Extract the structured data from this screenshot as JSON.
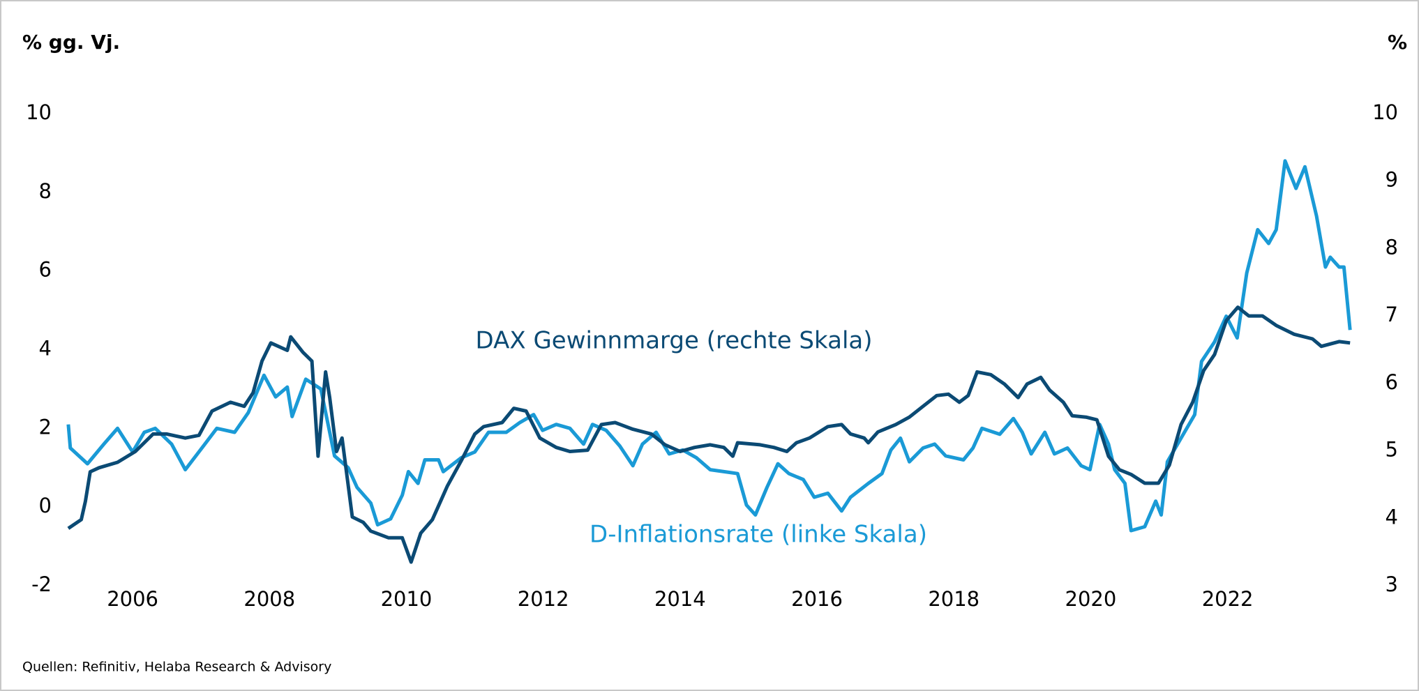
{
  "chart_data": {
    "type": "line",
    "ylabel": "% gg. Vj.",
    "y2label": "%",
    "source": "Quellen: Refinitiv, Helaba Research & Advisory",
    "annotations": [
      "DAX Gewinnmarge (rechte Skala)",
      "D-Inflationsrate (linke Skala)"
    ],
    "xlim": [
      2005,
      2023.9
    ],
    "xticks": [
      2006,
      2008,
      2010,
      2012,
      2014,
      2016,
      2018,
      2020,
      2022
    ],
    "ylim": [
      -2,
      10
    ],
    "yticks": [
      -2,
      0,
      2,
      4,
      6,
      8,
      10
    ],
    "y2lim": [
      3,
      10
    ],
    "y2ticks": [
      3,
      4,
      5,
      6,
      7,
      8,
      9,
      10
    ],
    "grid": false,
    "series": [
      {
        "name": "D-Inflationsrate",
        "color": "#1a9ad6",
        "axis": "y",
        "x": [
          2005.06,
          2005.09,
          2005.34,
          2005.58,
          2005.78,
          2006.0,
          2006.17,
          2006.33,
          2006.57,
          2006.77,
          2006.99,
          2007.23,
          2007.49,
          2007.69,
          2007.92,
          2008.09,
          2008.26,
          2008.33,
          2008.53,
          2008.75,
          2008.95,
          2009.15,
          2009.28,
          2009.48,
          2009.58,
          2009.77,
          2009.94,
          2010.03,
          2010.17,
          2010.27,
          2010.47,
          2010.54,
          2010.8,
          2011.0,
          2011.2,
          2011.46,
          2011.66,
          2011.86,
          2011.99,
          2012.19,
          2012.39,
          2012.59,
          2012.72,
          2012.92,
          2013.12,
          2013.31,
          2013.45,
          2013.65,
          2013.84,
          2014.04,
          2014.24,
          2014.44,
          2014.64,
          2014.84,
          2014.97,
          2015.1,
          2015.27,
          2015.43,
          2015.59,
          2015.8,
          2015.96,
          2016.16,
          2016.36,
          2016.49,
          2016.75,
          2016.95,
          2017.08,
          2017.22,
          2017.35,
          2017.55,
          2017.72,
          2017.88,
          2018.14,
          2018.28,
          2018.41,
          2018.67,
          2018.87,
          2019.0,
          2019.13,
          2019.33,
          2019.47,
          2019.66,
          2019.86,
          2019.99,
          2020.13,
          2020.26,
          2020.35,
          2020.5,
          2020.59,
          2020.79,
          2020.95,
          2021.03,
          2021.12,
          2021.32,
          2021.52,
          2021.62,
          2021.81,
          2021.98,
          2022.14,
          2022.28,
          2022.44,
          2022.6,
          2022.71,
          2022.84,
          2023.0,
          2023.13,
          2023.3,
          2023.43,
          2023.5,
          2023.63,
          2023.7,
          2023.79
        ],
        "values": [
          2.1,
          1.5,
          1.1,
          1.6,
          2.0,
          1.4,
          1.9,
          2.0,
          1.6,
          0.95,
          1.45,
          2.0,
          1.9,
          2.4,
          3.35,
          2.8,
          3.05,
          2.3,
          3.25,
          3.0,
          1.3,
          1.0,
          0.5,
          0.1,
          -0.45,
          -0.3,
          0.3,
          0.9,
          0.6,
          1.2,
          1.2,
          0.9,
          1.25,
          1.4,
          1.9,
          1.9,
          2.15,
          2.35,
          1.95,
          2.1,
          2.0,
          1.6,
          2.1,
          1.95,
          1.55,
          1.05,
          1.6,
          1.9,
          1.35,
          1.45,
          1.25,
          0.95,
          0.9,
          0.85,
          0.05,
          -0.2,
          0.5,
          1.1,
          0.85,
          0.7,
          0.25,
          0.35,
          -0.1,
          0.25,
          0.6,
          0.85,
          1.45,
          1.75,
          1.15,
          1.5,
          1.6,
          1.3,
          1.2,
          1.5,
          2.0,
          1.85,
          2.25,
          1.9,
          1.35,
          1.9,
          1.35,
          1.5,
          1.05,
          0.95,
          2.1,
          1.6,
          0.95,
          0.6,
          -0.6,
          -0.5,
          0.15,
          -0.2,
          1.15,
          1.75,
          2.35,
          3.7,
          4.2,
          4.85,
          4.3,
          5.95,
          7.05,
          6.7,
          7.05,
          8.8,
          8.1,
          8.65,
          7.4,
          6.1,
          6.35,
          6.1,
          6.1,
          4.5
        ]
      },
      {
        "name": "DAX Gewinnmarge",
        "color": "#0b4a74",
        "axis": "y2",
        "x": [
          2005.06,
          2005.25,
          2005.31,
          2005.38,
          2005.51,
          2005.78,
          2006.04,
          2006.3,
          2006.5,
          2006.77,
          2006.97,
          2007.16,
          2007.43,
          2007.63,
          2007.76,
          2007.89,
          2008.02,
          2008.26,
          2008.31,
          2008.49,
          2008.62,
          2008.71,
          2008.82,
          2008.88,
          2008.98,
          2009.06,
          2009.21,
          2009.37,
          2009.48,
          2009.74,
          2009.94,
          2010.07,
          2010.21,
          2010.38,
          2010.6,
          2010.8,
          2011.0,
          2011.13,
          2011.4,
          2011.57,
          2011.75,
          2011.95,
          2012.19,
          2012.39,
          2012.65,
          2012.85,
          2013.05,
          2013.31,
          2013.58,
          2013.78,
          2014.0,
          2014.21,
          2014.44,
          2014.64,
          2014.77,
          2014.84,
          2015.17,
          2015.37,
          2015.56,
          2015.7,
          2015.89,
          2016.16,
          2016.36,
          2016.49,
          2016.69,
          2016.75,
          2016.89,
          2017.15,
          2017.35,
          2017.55,
          2017.75,
          2017.92,
          2018.08,
          2018.21,
          2018.34,
          2018.54,
          2018.74,
          2018.94,
          2019.07,
          2019.27,
          2019.4,
          2019.6,
          2019.73,
          2019.93,
          2020.09,
          2020.26,
          2020.42,
          2020.59,
          2020.79,
          2020.99,
          2021.15,
          2021.32,
          2021.49,
          2021.65,
          2021.81,
          2021.98,
          2022.15,
          2022.31,
          2022.51,
          2022.71,
          2022.97,
          2023.24,
          2023.37,
          2023.63,
          2023.79
        ],
        "values": [
          3.85,
          3.98,
          4.25,
          4.69,
          4.75,
          4.83,
          4.99,
          5.25,
          5.25,
          5.19,
          5.23,
          5.59,
          5.72,
          5.66,
          5.86,
          6.33,
          6.6,
          6.49,
          6.69,
          6.46,
          6.33,
          4.92,
          6.17,
          5.79,
          4.99,
          5.19,
          4.02,
          3.94,
          3.81,
          3.71,
          3.71,
          3.35,
          3.78,
          3.98,
          4.48,
          4.85,
          5.25,
          5.36,
          5.42,
          5.63,
          5.59,
          5.19,
          5.05,
          4.99,
          5.01,
          5.39,
          5.42,
          5.32,
          5.25,
          5.09,
          4.99,
          5.05,
          5.09,
          5.05,
          4.92,
          5.12,
          5.09,
          5.05,
          4.99,
          5.12,
          5.19,
          5.36,
          5.39,
          5.25,
          5.19,
          5.12,
          5.28,
          5.39,
          5.5,
          5.66,
          5.82,
          5.84,
          5.72,
          5.82,
          6.17,
          6.13,
          5.99,
          5.79,
          5.99,
          6.09,
          5.9,
          5.72,
          5.52,
          5.5,
          5.46,
          4.92,
          4.72,
          4.65,
          4.52,
          4.52,
          4.79,
          5.39,
          5.72,
          6.19,
          6.43,
          6.93,
          7.13,
          7.0,
          7.0,
          6.86,
          6.73,
          6.66,
          6.55,
          6.62,
          6.6
        ]
      }
    ]
  }
}
